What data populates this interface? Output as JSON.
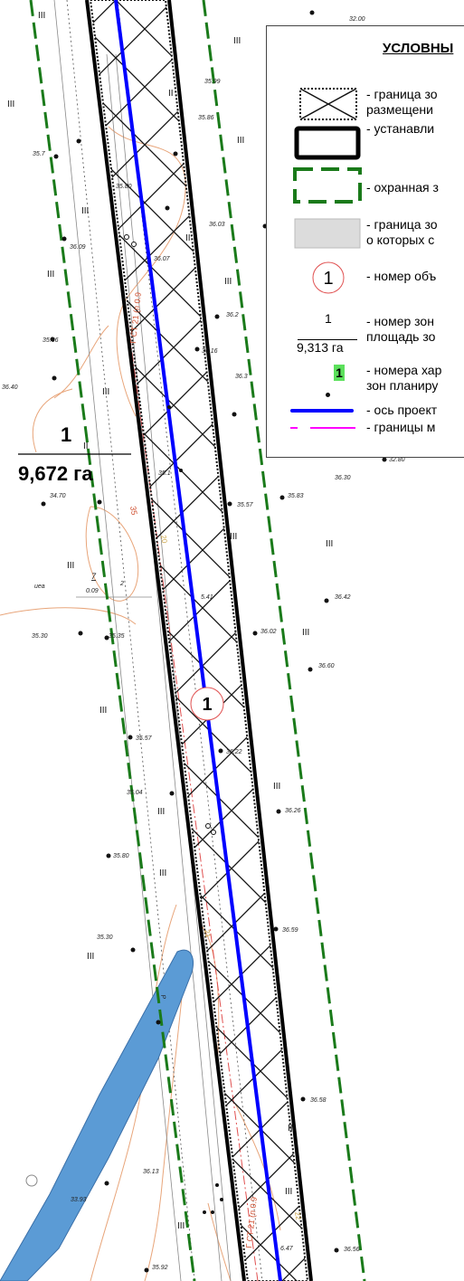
{
  "legend": {
    "title": "УСЛОВНЫ",
    "items": [
      {
        "symbol": "hatched-boundary",
        "text1": "- граница зо",
        "text2": "размещени"
      },
      {
        "symbol": "black-box",
        "text1": "- устанавли"
      },
      {
        "symbol": "green-dashed-box",
        "text1": "- охранная з"
      },
      {
        "symbol": "gray-box",
        "text1": "- граница зо",
        "text2": "о которых с"
      },
      {
        "symbol": "circle-number",
        "number": "1",
        "text1": "- номер объ"
      },
      {
        "symbol": "fraction",
        "numerator": "1",
        "denominator": "9,313 га",
        "text1": "- номер зон",
        "text2": "площадь зо"
      },
      {
        "symbol": "green-number",
        "number": "1",
        "text1": "- номера хар",
        "text2": "зон планиру"
      },
      {
        "symbol": "blue-line",
        "text1": "- ось проект"
      },
      {
        "symbol": "magenta-dash",
        "text1": "- границы м"
      }
    ]
  },
  "zone": {
    "number": "1",
    "area": "9,672 га"
  },
  "object_marker": "1",
  "colors": {
    "axis": "#0000ff",
    "protection": "#1a7a1a",
    "contour": "#e8a57a",
    "water": "#5b9bd5",
    "boundary_magenta": "#ff00ff",
    "zone_green": "#5ce05c"
  },
  "elevations": [
    "32.00",
    "35.99",
    "35.86",
    "35.7",
    "35.80",
    "36.03",
    "36.09",
    "36.07",
    "36.2",
    "35.06",
    "36.16",
    "36.40",
    "36.3",
    "34.70",
    "35.1",
    "35.57",
    "35.83",
    "36.30",
    "32.80",
    "35.30",
    "36.42",
    "36.02",
    "36.60",
    "35.57",
    "36.22",
    "35.04",
    "36.26",
    "35.80",
    "36.59",
    "35.30",
    "36.58",
    "36.13",
    "33.93",
    "35.92",
    "36.56",
    "6.47",
    "35.35",
    "5.41"
  ],
  "labels": {
    "roman3": "III",
    "roman2": "II",
    "gas_label": "Г СТ 21 (п 0.9",
    "gas_label2": "Г СТ 21 (п 0.9",
    "contour35": "35",
    "num20": "20",
    "num21": "21",
    "num22": "22",
    "uea": "иеа",
    "parcel7": "7",
    "parcel_val": "0.09",
    "parcel2": "2",
    "ret": "Р"
  }
}
